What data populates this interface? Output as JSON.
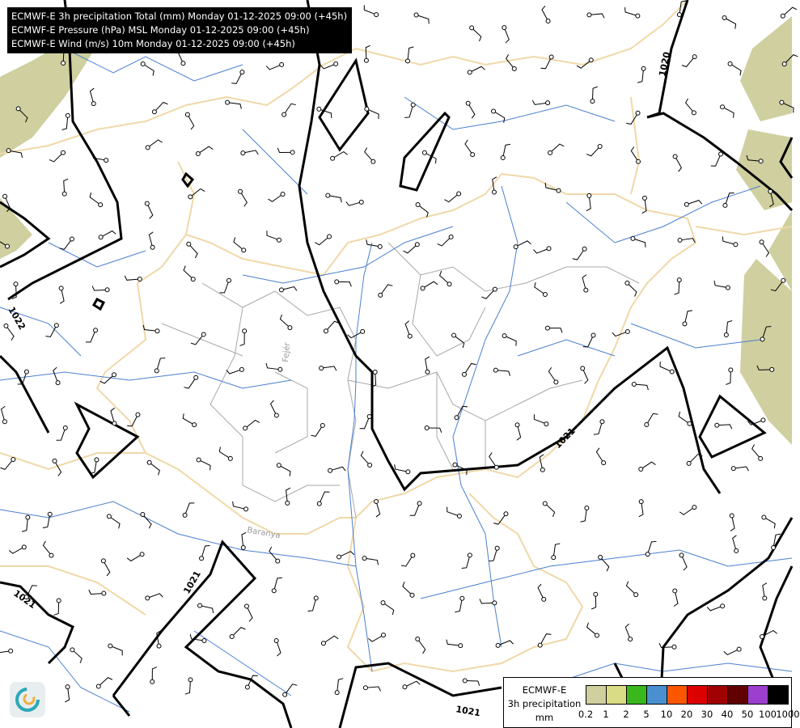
{
  "header": {
    "lines": [
      "ECMWF-E 3h precipitation Total (mm) Monday 01-12-2025 09:00 (+45h)",
      "ECMWF-E Pressure (hPa) MSL Monday 01-12-2025 09:00 (+45h)",
      "ECMWF-E Wind (m/s) 10m Monday 01-12-2025 09:00 (+45h)"
    ]
  },
  "map": {
    "isobar_labels": [
      "1020",
      "1022",
      "1021",
      "1021",
      "1021",
      "1021"
    ],
    "region_labels": [
      "Fejér",
      "Baranya"
    ],
    "colors": {
      "isobar": "#000000",
      "border": "#f0d8a8",
      "river": "#4a7fd0",
      "county": "#a0a0a0",
      "precip_light": "#cfcf9f"
    }
  },
  "legend": {
    "title": "ECMWF-E",
    "subtitle": "3h precipitation",
    "unit": "mm",
    "ticks": [
      "0.2",
      "1",
      "2",
      "5",
      "10",
      "20",
      "30",
      "40",
      "50",
      "100",
      "1000"
    ],
    "colors": [
      "#cfcf9f",
      "#d9dc84",
      "#39b71c",
      "#4a90d0",
      "#fa5700",
      "#dc0000",
      "#a00000",
      "#600000",
      "#9c3fcf",
      "#000000"
    ]
  },
  "logo": {
    "name": "ecmwf-swirl-icon"
  }
}
